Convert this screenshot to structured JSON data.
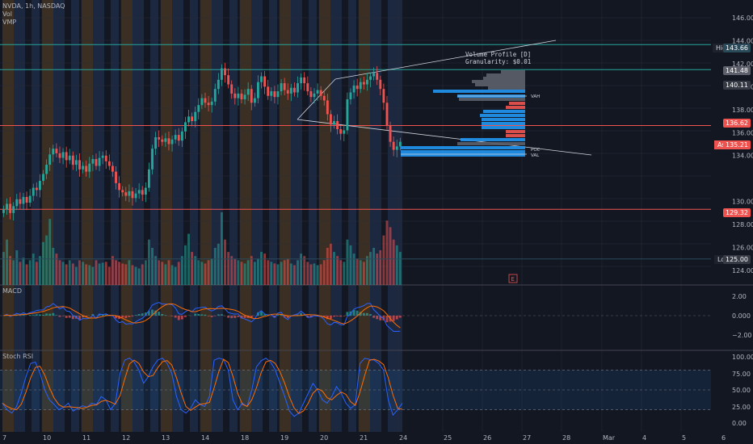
{
  "header": {
    "symbol_line": "NVDA, 1h, NASDAQ",
    "indicators": [
      "Vol",
      "VMP"
    ]
  },
  "colors": {
    "background": "#131722",
    "up": "#26a69a",
    "down": "#ef5350",
    "grid": "#2a2e39",
    "axis_text": "#b2b5be",
    "session_orange": "#3a2f22",
    "session_blue": "#1c2740",
    "macd_line": "#2962ff",
    "signal_line": "#ff6d00",
    "stoch_k": "#2962ff",
    "stoch_d": "#ff6d00",
    "profile_blue": "#2196f3",
    "profile_red": "#ef5350"
  },
  "volume_profile": {
    "title": "Volume Profile [D]",
    "granularity": "Granularity: $0.01",
    "vah": "VAH",
    "val": "VAL",
    "poc": "POC"
  },
  "price_axis": {
    "ticks": [
      "146.00",
      "144.00",
      "142.00",
      "140.00",
      "138.00",
      "136.00",
      "134.00",
      "130.00",
      "128.00",
      "126.00",
      "124.00"
    ],
    "high_label": "High",
    "high_value": "143.66",
    "level_141": "141.48",
    "level_140": "140.11",
    "level_136": "136.62",
    "ask_label": "Ask",
    "ask_value": "135.21",
    "level_129": "129.32",
    "low_label": "Low",
    "low_value": "125.00",
    "earnings_marker": "E"
  },
  "macd": {
    "title": "MACD",
    "ticks": [
      "2.00",
      "0.000",
      "−2.00"
    ]
  },
  "stoch": {
    "title": "Stoch RSI",
    "ticks": [
      "100.00",
      "75.00",
      "50.00",
      "25.00",
      "0.00"
    ]
  },
  "time_axis": {
    "labels": [
      "7",
      "10",
      "11",
      "12",
      "13",
      "14",
      "18",
      "19",
      "20",
      "21",
      "24",
      "25",
      "26",
      "27",
      "28",
      "Mar",
      "4",
      "5",
      "6"
    ]
  },
  "chart_data": {
    "type": "candlestick",
    "symbol": "NVDA",
    "interval": "1h",
    "exchange": "NASDAQ",
    "price_range": [
      123,
      147
    ],
    "horizontal_levels": [
      143.66,
      141.48,
      136.62,
      129.32,
      125.0
    ],
    "closes": [
      129.3,
      129.8,
      129.0,
      129.6,
      130.2,
      129.8,
      130.4,
      129.9,
      130.5,
      131.2,
      131.0,
      131.8,
      132.4,
      133.2,
      134.1,
      134.6,
      134.2,
      133.8,
      134.3,
      133.6,
      134.0,
      133.2,
      133.6,
      132.8,
      133.1,
      132.6,
      133.3,
      133.7,
      133.1,
      133.8,
      134.0,
      133.5,
      133.1,
      132.6,
      131.6,
      131.0,
      130.8,
      130.5,
      130.9,
      130.3,
      130.7,
      131.0,
      130.6,
      131.2,
      132.8,
      134.6,
      135.6,
      135.4,
      135.2,
      135.5,
      135.0,
      135.4,
      135.8,
      135.3,
      136.1,
      136.9,
      137.4,
      137.0,
      137.8,
      138.4,
      139.0,
      138.6,
      138.4,
      138.7,
      139.8,
      140.6,
      141.6,
      141.0,
      140.2,
      139.4,
      139.0,
      139.4,
      138.9,
      139.3,
      139.8,
      138.6,
      139.0,
      140.4,
      140.9,
      140.0,
      139.2,
      139.6,
      139.1,
      139.6,
      140.3,
      139.7,
      139.4,
      139.9,
      139.5,
      140.3,
      140.8,
      140.3,
      139.6,
      139.1,
      139.4,
      139.7,
      139.2,
      138.8,
      137.6,
      136.7,
      137.0,
      136.3,
      135.9,
      136.2,
      138.9,
      139.5,
      140.1,
      139.8,
      140.4,
      140.2,
      140.6,
      140.9,
      141.2,
      140.6,
      139.8,
      138.6,
      136.6,
      135.2,
      134.5,
      134.8,
      135.2
    ],
    "volumes": [
      40,
      55,
      35,
      30,
      42,
      28,
      33,
      25,
      30,
      38,
      28,
      35,
      52,
      60,
      80,
      45,
      38,
      30,
      28,
      25,
      30,
      26,
      22,
      30,
      28,
      25,
      24,
      22,
      30,
      26,
      27,
      28,
      22,
      35,
      30,
      28,
      26,
      25,
      30,
      24,
      22,
      20,
      25,
      30,
      55,
      45,
      35,
      30,
      28,
      25,
      30,
      24,
      22,
      28,
      35,
      48,
      62,
      40,
      35,
      30,
      28,
      26,
      30,
      32,
      45,
      50,
      88,
      55,
      40,
      35,
      32,
      30,
      28,
      26,
      30,
      35,
      28,
      32,
      40,
      38,
      30,
      28,
      26,
      25,
      28,
      30,
      32,
      26,
      24,
      30,
      38,
      35,
      28,
      25,
      26,
      24,
      25,
      30,
      45,
      50,
      40,
      35,
      30,
      28,
      55,
      48,
      38,
      32,
      30,
      28,
      35,
      40,
      45,
      38,
      42,
      60,
      78,
      70,
      55,
      48,
      40
    ],
    "stoch_rsi": [
      30,
      20,
      15,
      25,
      45,
      70,
      90,
      92,
      75,
      50,
      35,
      28,
      20,
      24,
      30,
      18,
      22,
      26,
      24,
      30,
      28,
      40,
      35,
      20,
      30,
      75,
      95,
      98,
      92,
      80,
      60,
      70,
      85,
      95,
      98,
      90,
      75,
      40,
      20,
      15,
      22,
      35,
      28,
      25,
      40,
      95,
      98,
      96,
      80,
      35,
      20,
      30,
      25,
      50,
      85,
      94,
      98,
      92,
      80,
      60,
      40,
      18,
      10,
      15,
      30,
      45,
      60,
      50,
      35,
      30,
      40,
      55,
      45,
      30,
      22,
      28,
      90,
      98,
      96,
      95,
      90,
      80,
      35,
      12,
      20,
      30
    ]
  }
}
